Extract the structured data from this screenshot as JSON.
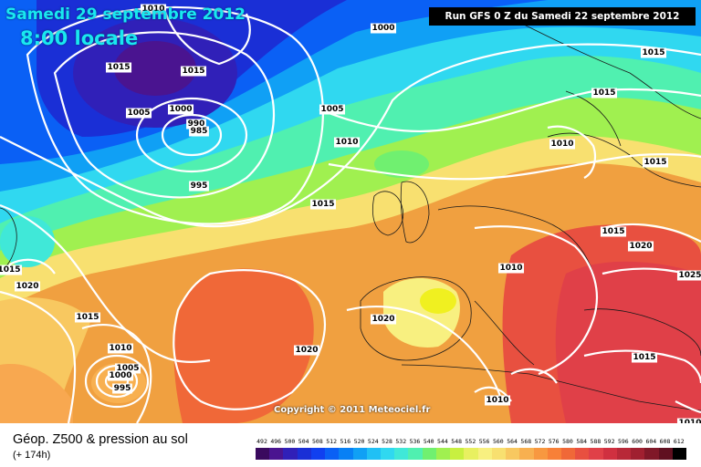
{
  "header": {
    "date": "Samedi 29 septembre 2012",
    "time": "8:00 locale",
    "run": "Run GFS 0 Z du Samedi 22 septembre 2012"
  },
  "footer": {
    "title": "Géop. Z500 & pression au sol",
    "subtitle": "(+ 174h)",
    "copyright": "Copyright © 2011 Meteociel.fr"
  },
  "legend": {
    "values": [
      "492",
      "496",
      "500",
      "504",
      "508",
      "512",
      "516",
      "520",
      "524",
      "528",
      "532",
      "536",
      "540",
      "544",
      "548",
      "552",
      "556",
      "560",
      "564",
      "568",
      "572",
      "576",
      "580",
      "584",
      "588",
      "592",
      "596",
      "600",
      "604",
      "608",
      "612"
    ],
    "colors": [
      "#3a0a5e",
      "#4a1490",
      "#3020b8",
      "#1a2fd6",
      "#1040f0",
      "#0a60f5",
      "#0880f5",
      "#10a0f5",
      "#20c0f5",
      "#30d8f0",
      "#40e8d8",
      "#50f0b0",
      "#70f070",
      "#a0f050",
      "#c8f040",
      "#e8f060",
      "#f8f080",
      "#f8e070",
      "#f8c860",
      "#f8b050",
      "#f89840",
      "#f88038",
      "#f06838",
      "#e85040",
      "#e04048",
      "#d03040",
      "#b82838",
      "#a02030",
      "#801828",
      "#601020",
      "#000000"
    ]
  },
  "isobars": [
    {
      "text": "1010"
    },
    {
      "text": "1000"
    },
    {
      "text": "1015"
    },
    {
      "text": "1015"
    },
    {
      "text": "1015"
    },
    {
      "text": "1005"
    },
    {
      "text": "1000"
    },
    {
      "text": "990"
    },
    {
      "text": "985"
    },
    {
      "text": "995"
    },
    {
      "text": "1005"
    },
    {
      "text": "1010"
    },
    {
      "text": "1015"
    },
    {
      "text": "1015"
    },
    {
      "text": "1010"
    },
    {
      "text": "1015"
    },
    {
      "text": "1020"
    },
    {
      "text": "1025"
    },
    {
      "text": "1010"
    },
    {
      "text": "1020"
    },
    {
      "text": "1015"
    },
    {
      "text": "1020"
    },
    {
      "text": "1015"
    },
    {
      "text": "1010"
    },
    {
      "text": "1005"
    },
    {
      "text": "1000"
    },
    {
      "text": "995"
    },
    {
      "text": "1020"
    },
    {
      "text": "1015"
    },
    {
      "text": "1010"
    },
    {
      "text": "1010"
    },
    {
      "text": "1015"
    }
  ]
}
